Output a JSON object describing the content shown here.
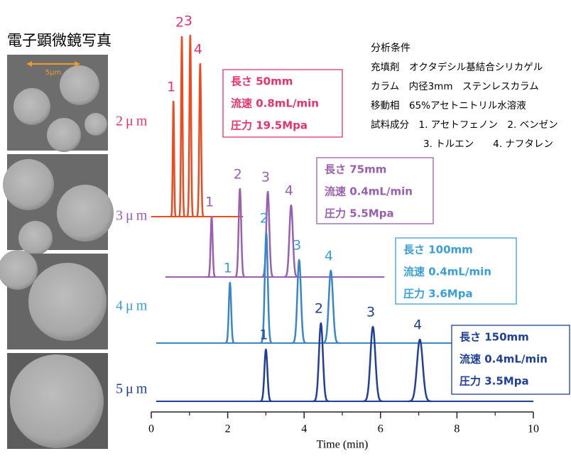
{
  "chart_data": {
    "type": "chromatogram",
    "title": "電子顕微鏡写真",
    "scale_bar": "5μm",
    "x_label": "Time (min)",
    "xlim": [
      0,
      10
    ],
    "xticks": [
      0,
      2,
      4,
      6,
      8,
      10
    ],
    "xminor": [
      1,
      3,
      5,
      7,
      9
    ],
    "conditions": {
      "title": "分析条件",
      "lines": [
        "充填剤　オクタデシル基結合シリカゲル",
        "カラム　内径3mm　ステンレスカラム",
        "移動相　65%アセトニトリル水溶液",
        "試料成分　1. アセトフェノン　2. ベンゼン",
        "3. トルエン　　4. ナフタレン"
      ]
    },
    "series": [
      {
        "name": "2μm",
        "color": "#ee4a22",
        "label_color": "#e6336b",
        "x_range": [
          0,
          2.4
        ],
        "times": [
          0.58,
          0.8,
          1.02,
          1.28
        ],
        "values": [
          162,
          253,
          255,
          215
        ],
        "peak_labels": [
          "1",
          "2",
          "3",
          "4"
        ],
        "info": [
          "長さ  50mm",
          "流速  0.8mL/min",
          "圧力  19.5Mpa"
        ]
      },
      {
        "name": "3μm",
        "color": "#9b5fb0",
        "label_color": "#9b5fb0",
        "x_range": [
          0.37,
          6.1
        ],
        "times": [
          1.58,
          2.32,
          3.05,
          3.66
        ],
        "values": [
          85,
          124,
          120,
          101
        ],
        "peak_labels": [
          "1",
          "2",
          "3",
          "4"
        ],
        "info": [
          "長さ  75mm",
          "流速  0.4mL/min",
          "圧力  5.5Mpa"
        ]
      },
      {
        "name": "4μm",
        "color": "#3a86c8",
        "label_color": "#3a9fd8",
        "x_range": [
          0.13,
          10.05
        ],
        "times": [
          2.06,
          3.01,
          3.87,
          4.7
        ],
        "values": [
          85,
          155,
          117,
          102
        ],
        "peak_labels": [
          "1",
          "2",
          "3",
          "4"
        ],
        "info": [
          "長さ  100mm",
          "流速  0.4mL/min",
          "圧力  3.6Mpa"
        ]
      },
      {
        "name": "5μm",
        "color": "#1f3f99",
        "label_color": "#1f3f99",
        "x_range": [
          0.13,
          10
        ],
        "times": [
          3.0,
          4.44,
          5.8,
          7.03
        ],
        "values": [
          73,
          110,
          105,
          87
        ],
        "peak_labels": [
          "1",
          "2",
          "3",
          "4"
        ],
        "info": [
          "長さ  150mm",
          "流速  0.4mL/min",
          "圧力  3.5Mpa"
        ]
      }
    ]
  }
}
